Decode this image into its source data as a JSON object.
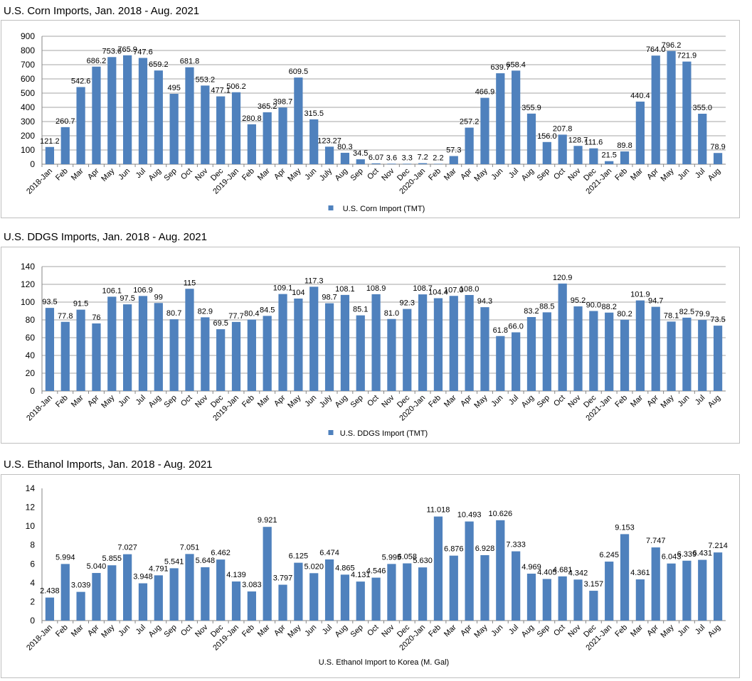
{
  "charts": [
    {
      "heading": "U.S. Corn Imports, Jan. 2018 - Aug. 2021",
      "chart_data": {
        "type": "bar",
        "title": "U.S. Corn Imports, Jan. 2018 - Aug. 2021",
        "xlabel": "",
        "ylabel": "",
        "ylim": [
          0,
          900
        ],
        "yticks": [
          0,
          100,
          200,
          300,
          400,
          500,
          600,
          700,
          800,
          900
        ],
        "grid": true,
        "legend_placement": "bottom",
        "legend_marker": true,
        "color": "#4f81bd",
        "categories": [
          "2018-Jan",
          "Feb",
          "Mar",
          "Apr",
          "May",
          "Jun",
          "Jul",
          "Aug",
          "Sep",
          "Oct",
          "Nov",
          "Dec",
          "2019-Jan",
          "Feb",
          "Mar",
          "Apr",
          "May",
          "Jun",
          "July",
          "Aug",
          "Sep",
          "Oct",
          "Nov",
          "Dec",
          "2020-Jan",
          "Feb",
          "Mar",
          "Apr",
          "May",
          "Jun",
          "Jul",
          "Aug",
          "Sep",
          "Oct",
          "Nov",
          "Dec",
          "2021-Jan",
          "Feb",
          "Mar",
          "Apr",
          "May",
          "Jun",
          "Jul",
          "Aug"
        ],
        "series": [
          {
            "name": "U.S. Corn Import (TMT)",
            "values": [
              121.2,
              260.7,
              542.6,
              686.2,
              753.6,
              765.9,
              747.6,
              659.2,
              495,
              681.8,
              553.2,
              477.1,
              506.2,
              280.8,
              365.2,
              398.7,
              609.5,
              315.5,
              123.27,
              80.3,
              34.5,
              6.07,
              3.6,
              3.3,
              7.2,
              2.2,
              57.3,
              257.2,
              466.9,
              639.7,
              658.4,
              355.9,
              156.0,
              207.8,
              128.7,
              111.6,
              21.5,
              89.8,
              440.4,
              764.0,
              796.2,
              721.9,
              355.0,
              78.9
            ],
            "labels": [
              "121.2",
              "260.7",
              "542.6",
              "686.2",
              "753.6",
              "765.9",
              "747.6",
              "659.2",
              "495",
              "681.8",
              "553.2",
              "477.1",
              "506.2",
              "280.8",
              "365.2",
              "398.7",
              "609.5",
              "315.5",
              "123.27",
              "80.3",
              "34.5",
              "6.07",
              "3.6",
              "3.3",
              "7.2",
              "2.2",
              "57.3",
              "257.2",
              "466.9",
              "639.7",
              "658.4",
              "355.9",
              "156.0",
              "207.8",
              "128.7",
              "111.6",
              "21.5",
              "89.8",
              "440.4",
              "764.0",
              "796.2",
              "721.9",
              "355.0",
              "78.9"
            ]
          }
        ]
      }
    },
    {
      "heading": "U.S. DDGS Imports, Jan. 2018 - Aug. 2021",
      "chart_data": {
        "type": "bar",
        "title": "U.S. DDGS Imports, Jan. 2018 - Aug. 2021",
        "xlabel": "",
        "ylabel": "",
        "ylim": [
          0,
          140
        ],
        "yticks": [
          0,
          20,
          40,
          60,
          80,
          100,
          120,
          140
        ],
        "grid": true,
        "legend_placement": "bottom",
        "legend_marker": true,
        "color": "#4f81bd",
        "categories": [
          "2018-Jan",
          "Feb",
          "Mar",
          "Apr",
          "May",
          "Jun",
          "Jul",
          "Aug",
          "Sep",
          "Oct",
          "Nov",
          "Dec",
          "2019-Jan",
          "Feb",
          "Mar",
          "Apr",
          "May",
          "Jun",
          "July",
          "Aug",
          "Sep",
          "Oct",
          "Nov",
          "Dec",
          "2020-Jan",
          "Feb",
          "Mar",
          "Apr",
          "May",
          "Jun",
          "Jul",
          "Aug",
          "Sep",
          "Oct",
          "Nov",
          "Dec",
          "2021-Jan",
          "Feb",
          "Mar",
          "Apr",
          "May",
          "Jun",
          "Jul",
          "Aug"
        ],
        "series": [
          {
            "name": "U.S. DDGS Import (TMT)",
            "values": [
              93.5,
              77.8,
              91.5,
              76,
              106.1,
              97.5,
              106.9,
              99,
              80.7,
              115,
              82.9,
              69.5,
              77.7,
              80.4,
              84.5,
              109.1,
              104,
              117.3,
              98.7,
              108.1,
              85.1,
              108.9,
              81.0,
              92.3,
              108.7,
              104.4,
              107.0,
              108.0,
              94.3,
              61.8,
              66.0,
              83.2,
              88.5,
              120.9,
              95.2,
              90.0,
              88.2,
              80.2,
              101.9,
              94.7,
              78.1,
              82.5,
              79.9,
              73.5
            ],
            "labels": [
              "93.5",
              "77.8",
              "91.5",
              "76",
              "106.1",
              "97.5",
              "106.9",
              "99",
              "80.7",
              "115",
              "82.9",
              "69.5",
              "77.7",
              "80.4",
              "84.5",
              "109.1",
              "104",
              "117.3",
              "98.7",
              "108.1",
              "85.1",
              "108.9",
              "81.0",
              "92.3",
              "108.7",
              "104.4",
              "107.0",
              "108.0",
              "94.3",
              "61.8",
              "66.0",
              "83.2",
              "88.5",
              "120.9",
              "95.2",
              "90.0",
              "88.2",
              "80.2",
              "101.9",
              "94.7",
              "78.1",
              "82.5",
              "79.9",
              "73.5"
            ]
          }
        ]
      }
    },
    {
      "heading": "U.S. Ethanol Imports, Jan. 2018 - Aug. 2021",
      "chart_data": {
        "type": "bar",
        "title": "U.S. Ethanol Imports, Jan. 2018 - Aug. 2021",
        "xlabel": "",
        "ylabel": "",
        "ylim": [
          0,
          14
        ],
        "yticks": [
          0,
          2,
          4,
          6,
          8,
          10,
          12,
          14
        ],
        "grid": false,
        "legend_placement": "bottom",
        "legend_marker": false,
        "color": "#4f81bd",
        "categories": [
          "2018-Jan",
          "Feb",
          "Mar",
          "Apr",
          "May",
          "Jun",
          "Jul",
          "Aug",
          "Sep",
          "Oct",
          "Nov",
          "Dec",
          "2019-Jan",
          "Feb",
          "Mar",
          "Apr",
          "May",
          "Jun",
          "Jul",
          "Aug",
          "Sep",
          "Oct",
          "Nov",
          "Dec",
          "2020-Jan",
          "Feb",
          "Mar",
          "Apr",
          "May",
          "Jun",
          "Jul",
          "Aug",
          "Sep",
          "Oct",
          "Nov",
          "Dec",
          "2021-Jan",
          "Feb",
          "Mar",
          "Apr",
          "May",
          "Jun",
          "Jul",
          "Aug"
        ],
        "series": [
          {
            "name": "U.S. Ethanol Import to Korea (M. Gal)",
            "values": [
              2.438,
              5.994,
              3.039,
              5.04,
              5.855,
              7.027,
              3.948,
              4.791,
              5.541,
              7.051,
              5.648,
              6.462,
              4.139,
              3.083,
              9.921,
              3.797,
              6.125,
              5.02,
              6.474,
              4.865,
              4.131,
              4.546,
              5.995,
              6.058,
              5.63,
              11.018,
              6.876,
              10.493,
              6.928,
              10.626,
              7.333,
              4.969,
              4.405,
              4.681,
              4.342,
              3.157,
              6.245,
              9.153,
              4.361,
              7.747,
              6.043,
              6.339,
              6.431,
              7.214
            ],
            "labels": [
              "2.438",
              "5.994",
              "3.039",
              "5.040",
              "5.855",
              "7.027",
              "3.948",
              "4.791",
              "5.541",
              "7.051",
              "5.648",
              "6.462",
              "4.139",
              "3.083",
              "9.921",
              "3.797",
              "6.125",
              "5.020",
              "6.474",
              "4.865",
              "4.131",
              "4.546",
              "5.995",
              "6.058",
              "5.630",
              "11.018",
              "6.876",
              "10.493",
              "6.928",
              "10.626",
              "7.333",
              "4.969",
              "4.405",
              "4.681",
              "4.342",
              "3.157",
              "6.245",
              "9.153",
              "4.361",
              "7.747",
              "6.043",
              "6.339",
              "6.431",
              "7.214"
            ]
          }
        ]
      }
    }
  ]
}
